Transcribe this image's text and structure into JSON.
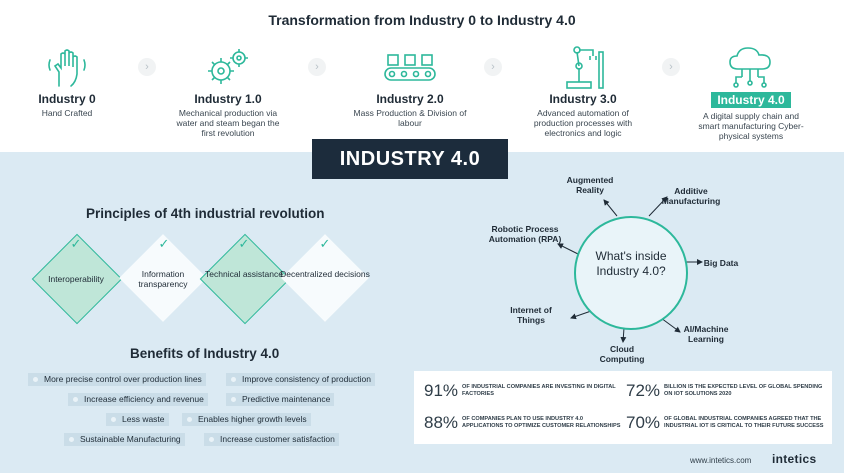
{
  "title": "Transformation from Industry 0 to Industry 4.0",
  "stages": [
    {
      "label": "Industry 0",
      "desc": "Hand Crafted",
      "icon": "hand-icon"
    },
    {
      "label": "Industry 1.0",
      "desc": "Mechanical production via water and steam began the first revolution",
      "icon": "gears-icon"
    },
    {
      "label": "Industry 2.0",
      "desc": "Mass Production & Division of labour",
      "icon": "conveyor-icon"
    },
    {
      "label": "Industry 3.0",
      "desc": "Advanced automation of production processes with electronics and logic",
      "icon": "robot-arm-icon"
    },
    {
      "label": "Industry 4.0",
      "desc": "A digital supply chain and smart manufacturing Cyber-physical systems",
      "icon": "cloud-network-icon"
    }
  ],
  "banner": "INDUSTRY 4.0",
  "principles": {
    "title": "Principles of 4th industrial revolution",
    "items": [
      "Interoperability",
      "Information transparency",
      "Technical assistance",
      "Decentralized decisions"
    ]
  },
  "benefits": {
    "title": "Benefits of Industry 4.0",
    "items": [
      "More precise control over production lines",
      "Improve consistency of production",
      "Increase efficiency and revenue",
      "Predictive maintenance",
      "Less waste",
      "Enables higher growth levels",
      "Sustainable Manufacturing",
      "Increase customer satisfaction"
    ]
  },
  "wheel": {
    "center": [
      "What's inside",
      "Industry 4.0?"
    ],
    "items": [
      "Augmented Reality",
      "Additive Manufacturing",
      "Big Data",
      "AI/Machine Learning",
      "Cloud Computing",
      "Internet of Things",
      "Robotic Process Automation (RPA)"
    ]
  },
  "stats": [
    {
      "pct": "91%",
      "text": "of industrial companies are investing in digital factories"
    },
    {
      "pct": "72%",
      "text": "billion is the expected level of global spending on IoT solutions 2020"
    },
    {
      "pct": "88%",
      "text": "of companies plan to use Industry 4.0 applications to optimize customer relationships"
    },
    {
      "pct": "70%",
      "text": "of global industrial companies agreed that the industrial IoT is critical to their future success"
    }
  ],
  "footer": {
    "url": "www.intetics.com",
    "brand": "intetics"
  },
  "colors": {
    "accent": "#2db89b",
    "navy": "#1c2c3c",
    "background": "#dbeaf3"
  }
}
